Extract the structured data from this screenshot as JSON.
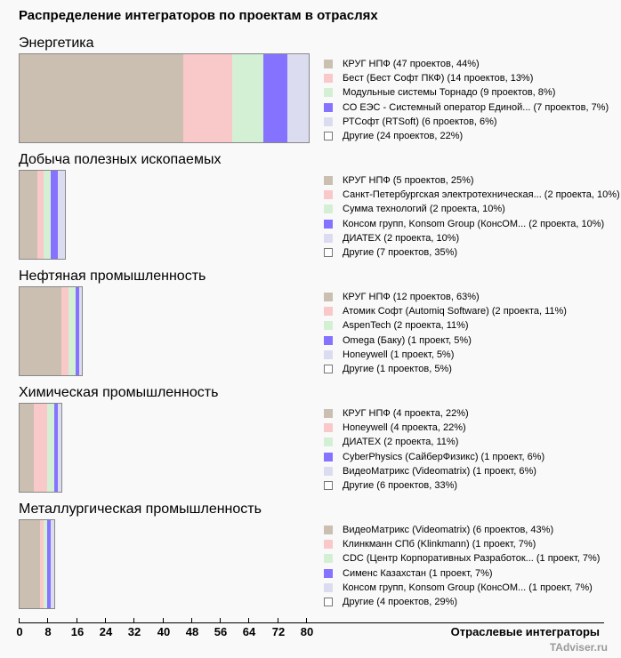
{
  "chart_data": {
    "type": "bar",
    "orientation": "horizontal-stacked",
    "title": "Распределение интеграторов по проектам в отраслях",
    "xlabel": "Отраслевые интеграторы",
    "ylabel": "",
    "xlim": [
      0,
      80
    ],
    "x_ticks": [
      "0",
      "8",
      "16",
      "24",
      "32",
      "40",
      "48",
      "56",
      "64",
      "72",
      "80"
    ],
    "legend_position": "right",
    "grid": false,
    "palette": [
      "#cbbfb1",
      "#f9c8c8",
      "#d3f0d4",
      "#8572ff",
      "#dcdcf0"
    ],
    "other_color": "#ffffff",
    "sections": [
      {
        "name": "Энергетика",
        "items": [
          {
            "label": "КРУГ НПФ",
            "value": 47,
            "percent": 44,
            "legend": "КРУГ НПФ (47 проектов, 44%)"
          },
          {
            "label": "Бест (Бест Софт ПКФ)",
            "value": 14,
            "percent": 13,
            "legend": "Бест (Бест Софт ПКФ) (14 проектов, 13%)"
          },
          {
            "label": "Модульные системы Торнадо",
            "value": 9,
            "percent": 8,
            "legend": "Модульные системы Торнадо (9 проектов, 8%)"
          },
          {
            "label": "СО ЕЭС - Системный оператор Единой...",
            "value": 7,
            "percent": 7,
            "legend": "СО ЕЭС - Системный оператор Единой... (7 проектов, 7%)"
          },
          {
            "label": "РТСофт (RTSoft)",
            "value": 6,
            "percent": 6,
            "legend": "РТСофт (RTSoft) (6 проектов, 6%)"
          }
        ],
        "other": {
          "label": "Другие",
          "value": 24,
          "percent": 22,
          "legend": "Другие (24 проектов, 22%)"
        }
      },
      {
        "name": "Добыча полезных ископаемых",
        "items": [
          {
            "label": "КРУГ НПФ",
            "value": 5,
            "percent": 25,
            "legend": "КРУГ НПФ (5 проектов, 25%)"
          },
          {
            "label": "Санкт-Петербургская электротехническая...",
            "value": 2,
            "percent": 10,
            "legend": "Санкт-Петербургская электротехническая... (2 проекта, 10%)"
          },
          {
            "label": "Сумма технологий",
            "value": 2,
            "percent": 10,
            "legend": "Сумма технологий (2 проекта, 10%)"
          },
          {
            "label": "Консом групп, Konsom Group (КонсОМ...",
            "value": 2,
            "percent": 10,
            "legend": "Консом групп, Konsom Group (КонсОМ... (2 проекта, 10%)"
          },
          {
            "label": "ДИАТЕХ",
            "value": 2,
            "percent": 10,
            "legend": "ДИАТЕХ (2 проекта, 10%)"
          }
        ],
        "other": {
          "label": "Другие",
          "value": 7,
          "percent": 35,
          "legend": "Другие (7 проектов, 35%)"
        }
      },
      {
        "name": "Нефтяная промышленность",
        "items": [
          {
            "label": "КРУГ НПФ",
            "value": 12,
            "percent": 63,
            "legend": "КРУГ НПФ (12 проектов, 63%)"
          },
          {
            "label": "Атомик Софт (Automiq Software)",
            "value": 2,
            "percent": 11,
            "legend": "Атомик Софт (Automiq Software) (2 проекта, 11%)"
          },
          {
            "label": "AspenTech",
            "value": 2,
            "percent": 11,
            "legend": "AspenTech (2 проекта, 11%)"
          },
          {
            "label": "Omega (Баку)",
            "value": 1,
            "percent": 5,
            "legend": "Omega (Баку) (1 проект, 5%)"
          },
          {
            "label": "Honeywell",
            "value": 1,
            "percent": 5,
            "legend": "Honeywell (1 проект, 5%)"
          }
        ],
        "other": {
          "label": "Другие",
          "value": 1,
          "percent": 5,
          "legend": "Другие (1 проектов, 5%)"
        }
      },
      {
        "name": "Химическая промышленность",
        "items": [
          {
            "label": "КРУГ НПФ",
            "value": 4,
            "percent": 22,
            "legend": "КРУГ НПФ (4 проекта, 22%)"
          },
          {
            "label": "Honeywell",
            "value": 4,
            "percent": 22,
            "legend": "Honeywell (4 проекта, 22%)"
          },
          {
            "label": "ДИАТЕХ",
            "value": 2,
            "percent": 11,
            "legend": "ДИАТЕХ (2 проекта, 11%)"
          },
          {
            "label": "CyberPhysics (СайберФизикс)",
            "value": 1,
            "percent": 6,
            "legend": "CyberPhysics (СайберФизикс) (1 проект, 6%)"
          },
          {
            "label": "ВидеоМатрикс (Videomatrix)",
            "value": 1,
            "percent": 6,
            "legend": "ВидеоМатрикс (Videomatrix) (1 проект, 6%)"
          }
        ],
        "other": {
          "label": "Другие",
          "value": 6,
          "percent": 33,
          "legend": "Другие (6 проектов, 33%)"
        }
      },
      {
        "name": "Металлургическая промышленность",
        "items": [
          {
            "label": "ВидеоМатрикс (Videomatrix)",
            "value": 6,
            "percent": 43,
            "legend": "ВидеоМатрикс (Videomatrix) (6 проектов, 43%)"
          },
          {
            "label": "Клинкманн СПб (Klinkmann)",
            "value": 1,
            "percent": 7,
            "legend": "Клинкманн СПб (Klinkmann) (1 проект, 7%)"
          },
          {
            "label": "CDC (Центр Корпоративных Разработок...",
            "value": 1,
            "percent": 7,
            "legend": "CDC (Центр Корпоративных Разработок... (1 проект, 7%)"
          },
          {
            "label": "Сименс Казахстан",
            "value": 1,
            "percent": 7,
            "legend": "Сименс Казахстан (1 проект, 7%)"
          },
          {
            "label": "Консом групп, Konsom Group (КонсОМ...",
            "value": 1,
            "percent": 7,
            "legend": "Консом групп, Konsom Group (КонсОМ... (1 проект, 7%)"
          }
        ],
        "other": {
          "label": "Другие",
          "value": 4,
          "percent": 29,
          "legend": "Другие (4 проектов, 29%)"
        }
      }
    ]
  },
  "watermark": "TAdviser.ru"
}
